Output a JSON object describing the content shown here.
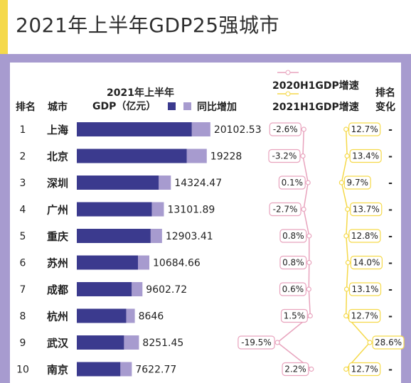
{
  "title": "2021年上半年GDP25强城市",
  "headers": {
    "rank": "排名",
    "city": "城市",
    "gdp_line1": "2021年上半年",
    "gdp_line2": "GDP（亿元）",
    "growth": "同比增加",
    "h1_2020": "2020H1GDP增速",
    "h1_2021": "2021H1GDP增速",
    "rank_change_1": "排名",
    "rank_change_2": "变化"
  },
  "colors": {
    "bar_base": "#3b3a8e",
    "bar_growth": "#a79bcf",
    "line_2020": "#e8a3bd",
    "line_2021": "#f5d94a",
    "background": "#a79bcf"
  },
  "chart_data": {
    "type": "bar",
    "title": "2021年上半年GDP25强城市",
    "categories": [
      "上海",
      "北京",
      "深圳",
      "广州",
      "重庆",
      "苏州",
      "成都",
      "杭州",
      "武汉",
      "南京"
    ],
    "ranks": [
      "1",
      "2",
      "3",
      "4",
      "5",
      "6",
      "7",
      "8",
      "9",
      "10"
    ],
    "gdp_2021h1": [
      20102.53,
      19228,
      14324.47,
      13101.89,
      12903.41,
      10684.66,
      9602.72,
      8646,
      8251.45,
      7622.77
    ],
    "gdp_labels": [
      "20102.53",
      "19228",
      "14324.47",
      "13101.89",
      "12903.41",
      "10684.66",
      "9602.72",
      "8646",
      "8251.45",
      "7622.77"
    ],
    "growth_2020h1": [
      -2.6,
      -3.2,
      0.1,
      -2.7,
      0.8,
      0.8,
      0.6,
      1.5,
      -19.5,
      2.2
    ],
    "growth_2020h1_labels": [
      "-2.6%",
      "-3.2%",
      "0.1%",
      "-2.7%",
      "0.8%",
      "0.8%",
      "0.6%",
      "1.5%",
      "-19.5%",
      "2.2%"
    ],
    "growth_2021h1": [
      12.7,
      13.4,
      9.7,
      13.7,
      12.8,
      14.0,
      13.1,
      12.7,
      28.6,
      12.7
    ],
    "growth_2021h1_labels": [
      "12.7%",
      "13.4%",
      "9.7%",
      "13.7%",
      "12.8%",
      "14.0%",
      "13.1%",
      "12.7%",
      "28.6%",
      "12.7%"
    ],
    "rank_change": [
      "-",
      "-",
      "-",
      "-",
      "-",
      "-",
      "-",
      "-",
      "-",
      "-"
    ],
    "legend": [
      "GDP（亿元）",
      "同比增加",
      "2020H1GDP增速",
      "2021H1GDP增速"
    ]
  }
}
